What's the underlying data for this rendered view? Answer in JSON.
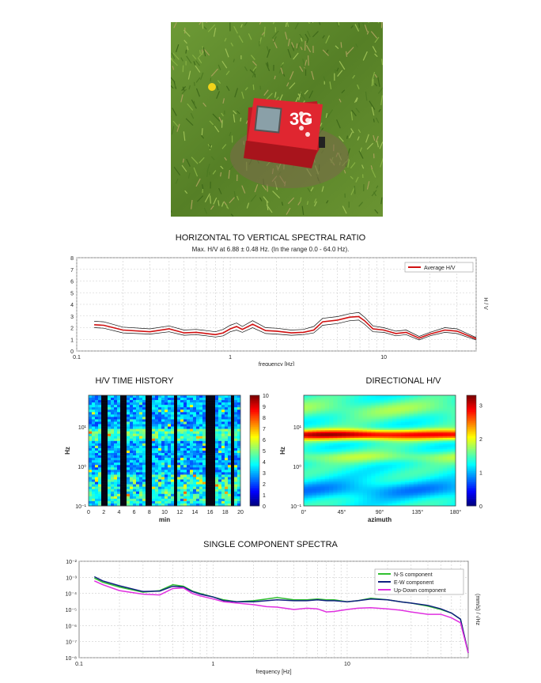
{
  "photo": {
    "device_label": "3G",
    "device_color": "#e02630",
    "grass_color": "#5e8a2c"
  },
  "chart_data": [
    {
      "type": "line",
      "title": "HORIZONTAL TO VERTICAL SPECTRAL RATIO",
      "subtitle": "Max. H/V at 6.88 ± 0.48 Hz. (In the range 0.0 - 64.0 Hz).",
      "xlabel": "frequency [Hz]",
      "ylabel": "H / V",
      "xscale": "log",
      "xlim": [
        0.1,
        40
      ],
      "ylim": [
        0,
        8
      ],
      "xticks": [
        "0.1",
        "1",
        "10"
      ],
      "yticks": [
        "0",
        "1",
        "2",
        "3",
        "4",
        "5",
        "6",
        "7",
        "8"
      ],
      "grid": true,
      "legend_position": "top-right",
      "x": [
        0.13,
        0.15,
        0.2,
        0.3,
        0.4,
        0.5,
        0.6,
        0.7,
        0.8,
        0.9,
        1.0,
        1.1,
        1.2,
        1.4,
        1.7,
        2.0,
        2.5,
        3.0,
        3.5,
        4.0,
        5.0,
        6.0,
        6.88,
        7.5,
        8.5,
        10,
        12,
        14,
        17,
        20,
        25,
        30,
        35,
        40
      ],
      "series": [
        {
          "name": "Average H/V",
          "color": "#d01010",
          "values": [
            2.25,
            2.2,
            1.8,
            1.65,
            1.9,
            1.55,
            1.6,
            1.5,
            1.4,
            1.55,
            1.9,
            2.1,
            1.85,
            2.3,
            1.75,
            1.7,
            1.55,
            1.6,
            1.8,
            2.5,
            2.65,
            2.9,
            2.95,
            2.6,
            1.9,
            1.8,
            1.5,
            1.6,
            1.1,
            1.45,
            1.8,
            1.7,
            1.35,
            1.05
          ]
        },
        {
          "color": "#111111",
          "values": [
            2.55,
            2.5,
            2.05,
            1.9,
            2.15,
            1.8,
            1.85,
            1.75,
            1.65,
            1.85,
            2.2,
            2.4,
            2.1,
            2.6,
            2.0,
            1.95,
            1.8,
            1.85,
            2.1,
            2.8,
            2.95,
            3.2,
            3.3,
            2.9,
            2.15,
            2.0,
            1.7,
            1.8,
            1.25,
            1.6,
            2.0,
            1.9,
            1.5,
            1.15
          ]
        },
        {
          "color": "#111111",
          "values": [
            2.0,
            1.95,
            1.55,
            1.45,
            1.65,
            1.35,
            1.4,
            1.3,
            1.2,
            1.3,
            1.65,
            1.8,
            1.6,
            2.0,
            1.5,
            1.45,
            1.35,
            1.4,
            1.55,
            2.2,
            2.35,
            2.6,
            2.65,
            2.3,
            1.65,
            1.6,
            1.3,
            1.4,
            0.95,
            1.3,
            1.6,
            1.5,
            1.2,
            0.95
          ]
        }
      ]
    },
    {
      "type": "heatmap",
      "title": "H/V TIME HISTORY",
      "xlabel": "min",
      "ylabel": "Hz",
      "xlim": [
        0,
        20
      ],
      "yscale": "log",
      "ylim": [
        0.1,
        64
      ],
      "xticks": [
        "0",
        "2",
        "4",
        "6",
        "8",
        "10",
        "12",
        "14",
        "16",
        "18",
        "20"
      ],
      "yticks": [
        "10⁻¹",
        "10⁰",
        "10¹"
      ],
      "colorbar_ticks": [
        "0",
        "1",
        "2",
        "3",
        "4",
        "5",
        "6",
        "7",
        "8",
        "9",
        "10"
      ],
      "colorbar_range": [
        0,
        10
      ]
    },
    {
      "type": "heatmap",
      "title": "DIRECTIONAL H/V",
      "xlabel": "azimuth",
      "ylabel": "Hz",
      "xlim": [
        0,
        180
      ],
      "yscale": "log",
      "ylim": [
        0.1,
        64
      ],
      "xticks": [
        "0°",
        "45°",
        "90°",
        "135°",
        "180°"
      ],
      "yticks": [
        "10⁻¹",
        "10⁰",
        "10¹"
      ],
      "colorbar_ticks": [
        "0",
        "1",
        "2",
        "3"
      ],
      "colorbar_range": [
        0,
        3.3
      ]
    },
    {
      "type": "line",
      "title": "SINGLE COMPONENT SPECTRA",
      "xlabel": "frequency [Hz]",
      "ylabel": "(mm/s) / √Hz",
      "xscale": "log",
      "yscale": "log",
      "xlim": [
        0.1,
        80
      ],
      "ylim": [
        1e-08,
        0.01
      ],
      "xticks": [
        "0.1",
        "1",
        "10"
      ],
      "yticks": [
        "10⁻⁸",
        "10⁻⁷",
        "10⁻⁶",
        "10⁻⁵",
        "10⁻⁴",
        "10⁻³",
        "10⁻²"
      ],
      "grid": true,
      "legend_position": "top-right",
      "x": [
        0.13,
        0.15,
        0.2,
        0.3,
        0.4,
        0.5,
        0.6,
        0.7,
        0.8,
        1.0,
        1.2,
        1.5,
        2.0,
        2.5,
        3.0,
        4.0,
        5.0,
        6.0,
        7.0,
        8.0,
        10,
        12,
        15,
        20,
        25,
        30,
        40,
        50,
        60,
        70,
        80
      ],
      "series": [
        {
          "name": "N-S component",
          "color": "#30c030",
          "values": [
            0.0009,
            0.0005,
            0.00025,
            0.00012,
            0.00015,
            0.00035,
            0.00028,
            0.00014,
            0.0001,
            6e-05,
            4e-05,
            3e-05,
            3.5e-05,
            4.5e-05,
            5.5e-05,
            4e-05,
            4e-05,
            4.5e-05,
            4e-05,
            4e-05,
            3e-05,
            3.5e-05,
            5e-05,
            4e-05,
            3e-05,
            2.5e-05,
            1.6e-05,
            1e-05,
            6e-06,
            2.5e-06,
            2e-08
          ]
        },
        {
          "name": "E-W component",
          "color": "#102080",
          "values": [
            0.0011,
            0.0006,
            0.0003,
            0.00013,
            0.00014,
            0.00028,
            0.00025,
            0.00013,
            9e-05,
            6e-05,
            3.5e-05,
            3e-05,
            3e-05,
            3.5e-05,
            4e-05,
            3.5e-05,
            3.5e-05,
            4e-05,
            3.5e-05,
            3.5e-05,
            3e-05,
            3.5e-05,
            4.5e-05,
            4e-05,
            3e-05,
            2.5e-05,
            1.8e-05,
            1.1e-05,
            6e-06,
            2.5e-06,
            2e-08
          ]
        },
        {
          "name": "Up-Down component",
          "color": "#e030e0",
          "values": [
            0.0006,
            0.00035,
            0.00015,
            9e-05,
            8e-05,
            0.0002,
            0.00022,
            0.0001,
            7e-05,
            4.5e-05,
            3e-05,
            2.5e-05,
            2e-05,
            1.5e-05,
            1.4e-05,
            1e-05,
            1.2e-05,
            1.1e-05,
            7e-06,
            7.5e-06,
            1e-05,
            1.2e-05,
            1.3e-05,
            1.1e-05,
            9e-06,
            7e-06,
            5e-06,
            5e-06,
            3e-06,
            1.5e-06,
            2e-08
          ]
        }
      ]
    }
  ]
}
